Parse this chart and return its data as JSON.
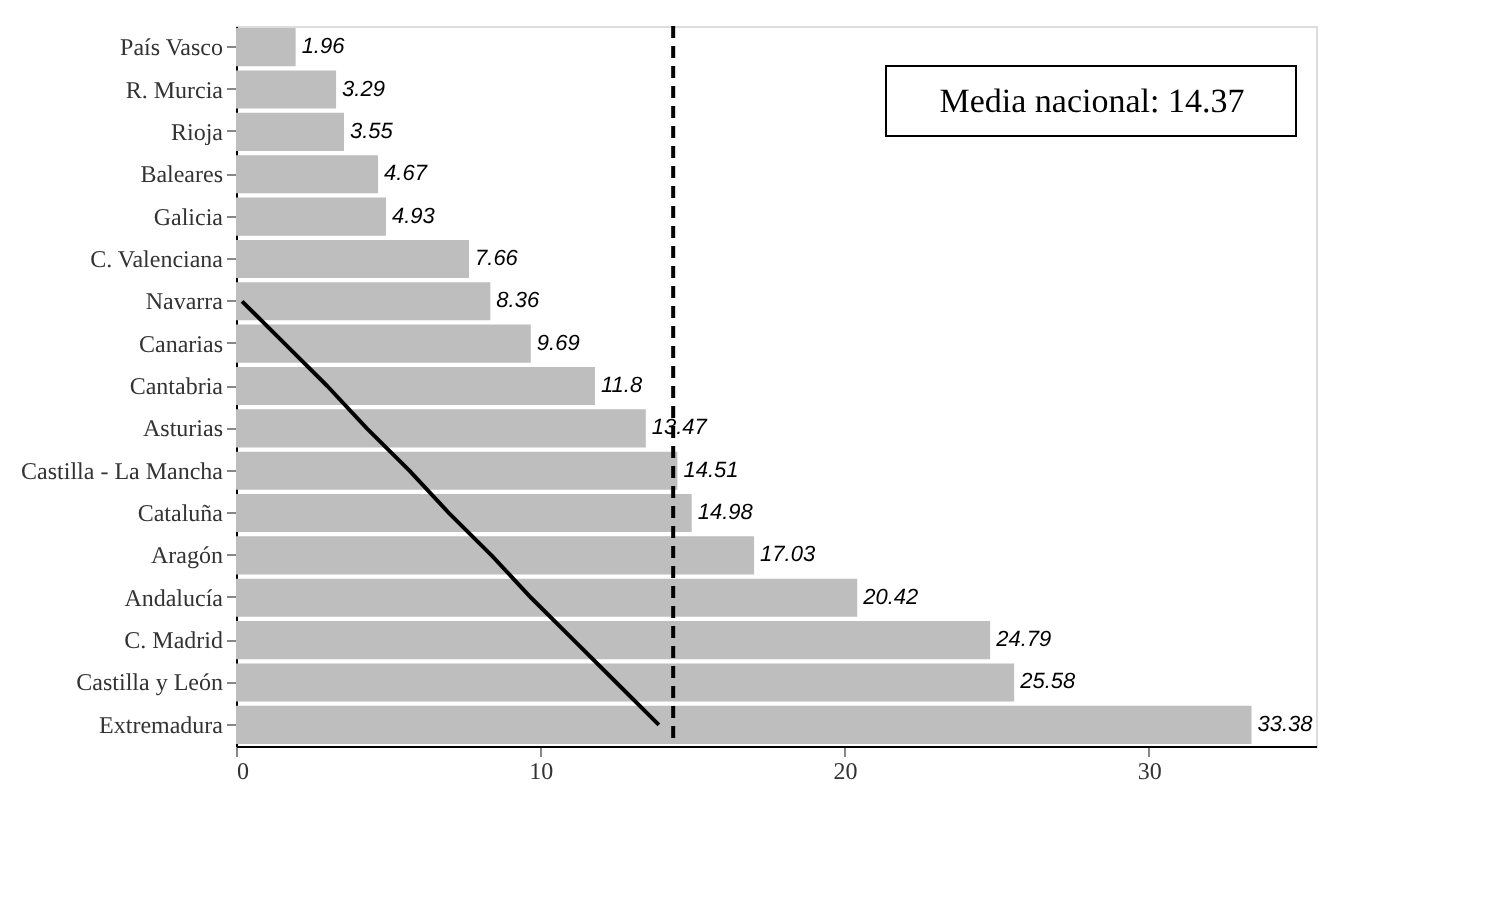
{
  "chart_data": {
    "type": "bar",
    "orientation": "horizontal",
    "categories": [
      "País Vasco",
      "R. Murcia",
      "Rioja",
      "Baleares",
      "Galicia",
      "C. Valenciana",
      "Navarra",
      "Canarias",
      "Cantabria",
      "Asturias",
      "Castilla - La Mancha",
      "Cataluña",
      "Aragón",
      "Andalucía",
      "C. Madrid",
      "Castilla y León",
      "Extremadura"
    ],
    "series": [
      {
        "color": "#bebebe",
        "values": [
          1.96,
          3.29,
          3.55,
          4.67,
          4.93,
          7.66,
          8.36,
          9.69,
          11.8,
          13.47,
          14.51,
          14.98,
          17.03,
          20.42,
          24.79,
          25.58,
          33.38
        ],
        "value_labels": [
          "1.96",
          "3.29",
          "3.55",
          "4.67",
          "4.93",
          "7.66",
          "8.36",
          "9.69",
          "11.8",
          "13.47",
          "14.51",
          "14.98",
          "17.03",
          "20.42",
          "24.79",
          "25.58",
          "33.38"
        ]
      },
      {
        "type": "line",
        "color": "#000000",
        "values": [
          null,
          null,
          null,
          null,
          null,
          null,
          0.2,
          1.6,
          3.0,
          4.3,
          5.7,
          7.0,
          8.4,
          9.7,
          11.1,
          12.5,
          13.9
        ]
      }
    ],
    "xlim": [
      0,
      35.5
    ],
    "xticks": [
      0,
      10,
      20,
      30
    ],
    "grid": false,
    "ref_lines": [
      {
        "axis": "x",
        "value": 14.37,
        "line_style": "dashed",
        "color": "#000000"
      }
    ],
    "annotations": [
      "Media nacional: 14.37"
    ]
  }
}
